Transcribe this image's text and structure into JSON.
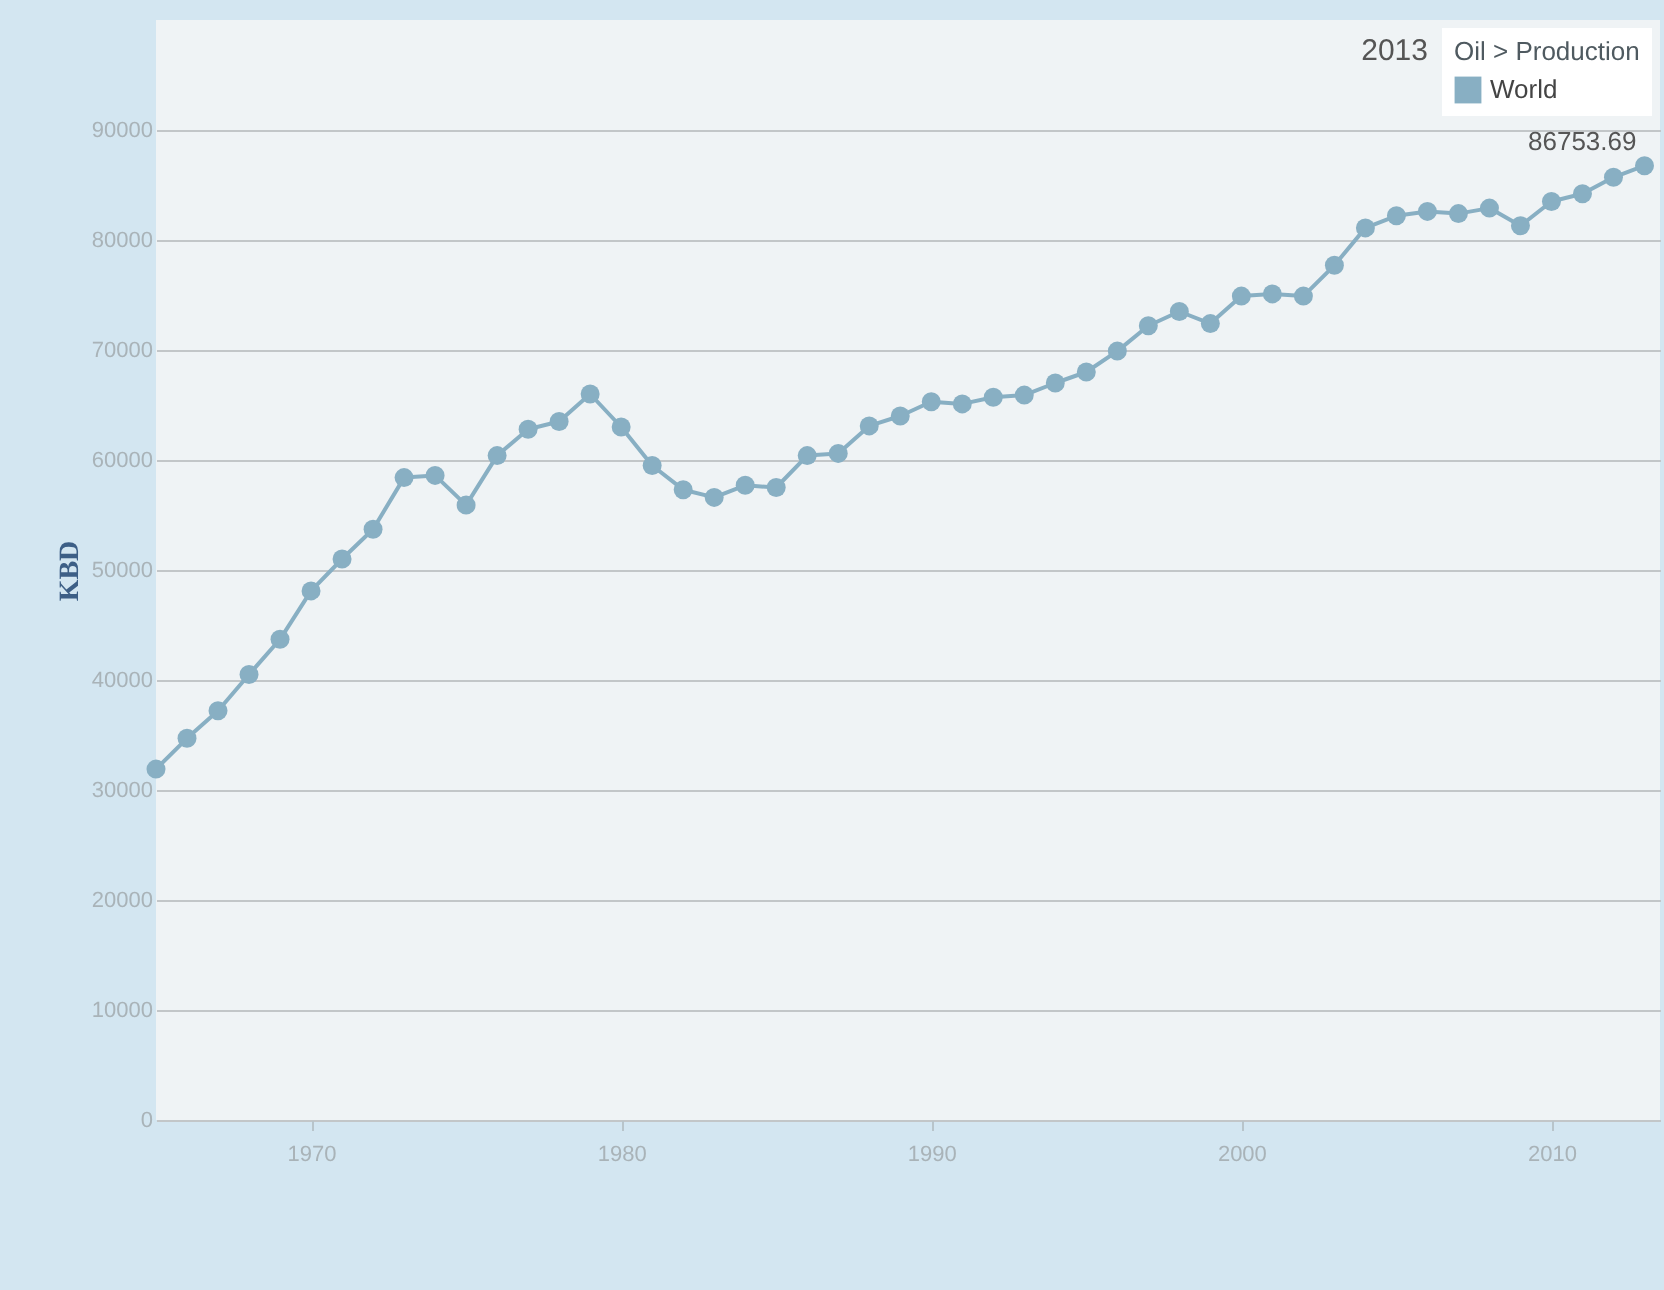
{
  "chart_data": {
    "type": "line",
    "ylabel": "KBD",
    "legend_title": "Oil > Production",
    "legend": "top right",
    "grid": "y",
    "marker": "circle",
    "line_style": "solid",
    "x": [
      1965,
      1966,
      1967,
      1968,
      1969,
      1970,
      1971,
      1972,
      1973,
      1974,
      1975,
      1976,
      1977,
      1978,
      1979,
      1980,
      1981,
      1982,
      1983,
      1984,
      1985,
      1986,
      1987,
      1988,
      1989,
      1990,
      1991,
      1992,
      1993,
      1994,
      1995,
      1996,
      1997,
      1998,
      1999,
      2000,
      2001,
      2002,
      2003,
      2004,
      2005,
      2006,
      2007,
      2008,
      2009,
      2010,
      2011,
      2012,
      2013
    ],
    "series": [
      {
        "name": "World",
        "color": "#88afc3",
        "values": [
          31900,
          34700,
          37200,
          40500,
          43700,
          48100,
          51000,
          53700,
          58400,
          58600,
          55900,
          60400,
          62800,
          63500,
          66000,
          63000,
          59500,
          57300,
          56600,
          57700,
          57500,
          60400,
          60600,
          63100,
          64000,
          65300,
          65100,
          65700,
          65900,
          67000,
          68000,
          69900,
          72200,
          73500,
          72400,
          74900,
          75100,
          74900,
          77700,
          81100,
          82200,
          82600,
          82400,
          82900,
          81300,
          83500,
          84200,
          85700,
          86753.69
        ],
        "value_labels": [
          null,
          null,
          null,
          null,
          null,
          null,
          null,
          null,
          null,
          null,
          null,
          null,
          null,
          null,
          null,
          null,
          null,
          null,
          null,
          null,
          null,
          null,
          null,
          null,
          null,
          null,
          null,
          null,
          null,
          null,
          null,
          null,
          null,
          null,
          null,
          null,
          null,
          null,
          null,
          null,
          null,
          null,
          null,
          null,
          null,
          null,
          null,
          null,
          "86753.69"
        ]
      }
    ],
    "annotations": [
      "2013"
    ],
    "xlim": [
      1965,
      2013.5
    ],
    "xticks": [
      1970,
      1980,
      1990,
      2000,
      2010
    ],
    "ylim": [
      0,
      100000
    ],
    "yticks": [
      0,
      10000,
      20000,
      30000,
      40000,
      50000,
      60000,
      70000,
      80000,
      90000
    ]
  }
}
